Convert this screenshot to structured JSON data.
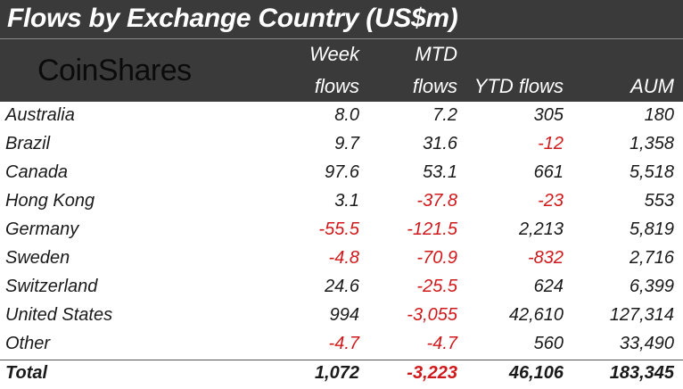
{
  "title": "Flows by Exchange Country (US$m)",
  "logo_text": "CoinShares",
  "colors": {
    "header_bg": "#3a3a3a",
    "negative": "#d0191c",
    "text": "#1a1a1a"
  },
  "chart_data": {
    "type": "table",
    "title": "Flows by Exchange Country (US$m)",
    "columns": [
      {
        "line1": "",
        "line2": ""
      },
      {
        "line1": "Week",
        "line2": "flows"
      },
      {
        "line1": "MTD",
        "line2": "flows"
      },
      {
        "line1": "",
        "line2": "YTD flows"
      },
      {
        "line1": "",
        "line2": "AUM"
      }
    ],
    "rows": [
      {
        "country": "Australia",
        "week": 8.0,
        "mtd": 7.2,
        "ytd": 305,
        "aum": 180,
        "display": [
          "8.0",
          "7.2",
          "305",
          "180"
        ]
      },
      {
        "country": "Brazil",
        "week": 9.7,
        "mtd": 31.6,
        "ytd": -12,
        "aum": 1358,
        "display": [
          "9.7",
          "31.6",
          "-12",
          "1,358"
        ]
      },
      {
        "country": "Canada",
        "week": 97.6,
        "mtd": 53.1,
        "ytd": 661,
        "aum": 5518,
        "display": [
          "97.6",
          "53.1",
          "661",
          "5,518"
        ]
      },
      {
        "country": "Hong Kong",
        "week": 3.1,
        "mtd": -37.8,
        "ytd": -23,
        "aum": 553,
        "display": [
          "3.1",
          "-37.8",
          "-23",
          "553"
        ]
      },
      {
        "country": "Germany",
        "week": -55.5,
        "mtd": -121.5,
        "ytd": 2213,
        "aum": 5819,
        "display": [
          "-55.5",
          "-121.5",
          "2,213",
          "5,819"
        ]
      },
      {
        "country": "Sweden",
        "week": -4.8,
        "mtd": -70.9,
        "ytd": -832,
        "aum": 2716,
        "display": [
          "-4.8",
          "-70.9",
          "-832",
          "2,716"
        ]
      },
      {
        "country": "Switzerland",
        "week": 24.6,
        "mtd": -25.5,
        "ytd": 624,
        "aum": 6399,
        "display": [
          "24.6",
          "-25.5",
          "624",
          "6,399"
        ]
      },
      {
        "country": "United States",
        "week": 994,
        "mtd": -3055,
        "ytd": 42610,
        "aum": 127314,
        "display": [
          "994",
          "-3,055",
          "42,610",
          "127,314"
        ]
      },
      {
        "country": "Other",
        "week": -4.7,
        "mtd": -4.7,
        "ytd": 560,
        "aum": 33490,
        "display": [
          "-4.7",
          "-4.7",
          "560",
          "33,490"
        ]
      }
    ],
    "total": {
      "label": "Total",
      "week": 1072,
      "mtd": -3223,
      "ytd": 46106,
      "aum": 183345,
      "display": [
        "1,072",
        "-3,223",
        "46,106",
        "183,345"
      ]
    }
  }
}
